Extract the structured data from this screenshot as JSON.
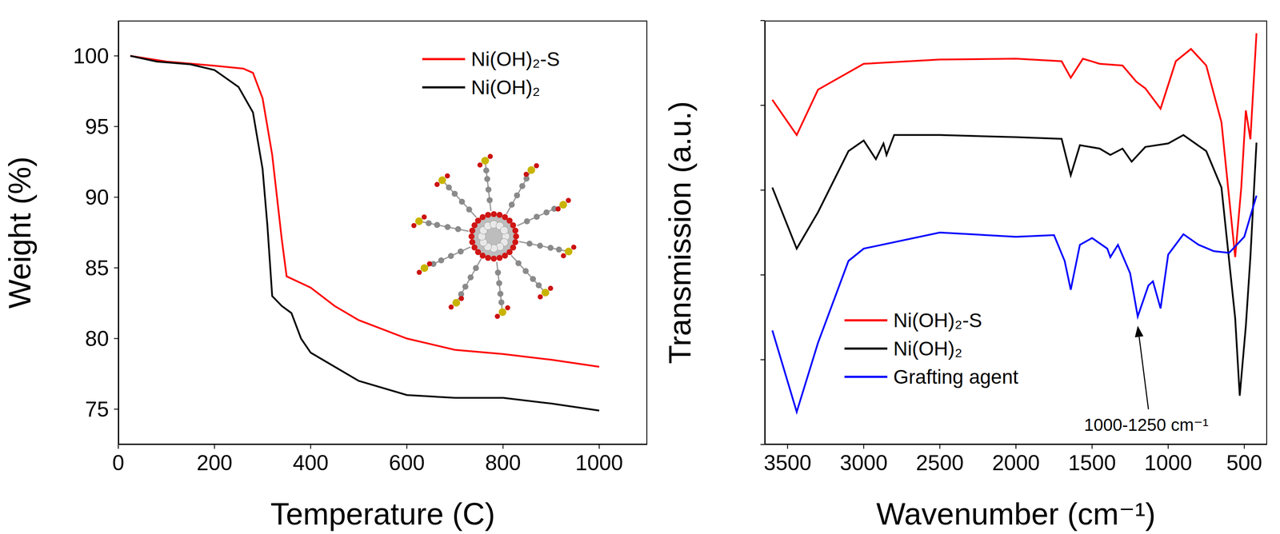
{
  "chart_data": [
    {
      "type": "line",
      "x_label": "Temperature (C)",
      "y_label": "Weight (%)",
      "xlim": [
        0,
        1100
      ],
      "xticks": [
        0,
        200,
        400,
        600,
        800,
        1000
      ],
      "ylim": [
        72.5,
        102.5
      ],
      "yticks": [
        75,
        80,
        85,
        90,
        95,
        100
      ],
      "legend": "upper right",
      "series": [
        {
          "name": "Ni(OH)₂-S",
          "color": "#ff0000",
          "x": [
            25,
            100,
            200,
            260,
            280,
            300,
            320,
            340,
            350,
            400,
            450,
            500,
            600,
            700,
            800,
            900,
            1000
          ],
          "values": [
            100,
            99.6,
            99.3,
            99.1,
            98.8,
            97,
            93,
            87,
            84.4,
            83.6,
            82.3,
            81.3,
            80,
            79.2,
            78.9,
            78.5,
            78
          ]
        },
        {
          "name": "Ni(OH)₂",
          "color": "#000000",
          "x": [
            25,
            80,
            150,
            200,
            250,
            280,
            300,
            310,
            320,
            340,
            360,
            380,
            400,
            450,
            500,
            600,
            700,
            800,
            900,
            1000
          ],
          "values": [
            100,
            99.6,
            99.4,
            99,
            97.8,
            96,
            92,
            88,
            83,
            82.3,
            81.8,
            80,
            79,
            78,
            77,
            76,
            75.8,
            75.8,
            75.4,
            74.9
          ]
        }
      ]
    },
    {
      "type": "line",
      "x_label": "Wavenumber (cm⁻¹)",
      "y_label": "Transmission (a.u.)",
      "xlim": [
        3650,
        350
      ],
      "xticks": [
        3500,
        3000,
        2500,
        2000,
        1500,
        1000,
        500
      ],
      "ylim": [
        0,
        100
      ],
      "yticks": [
        0,
        20,
        40,
        60,
        80,
        100
      ],
      "tick_labels": "x",
      "legend": "lower left",
      "annotations": [
        {
          "text": "1000-1250 cm⁻¹",
          "x": 1200,
          "y": 28
        }
      ],
      "series": [
        {
          "name": "Ni(OH)₂-S",
          "color": "#ff0000",
          "x": [
            3600,
            3440,
            3300,
            3000,
            2500,
            2000,
            1700,
            1640,
            1560,
            1450,
            1300,
            1210,
            1150,
            1050,
            950,
            850,
            750,
            650,
            560,
            520,
            490,
            460,
            420
          ],
          "values": [
            81.3,
            73,
            83.7,
            89.8,
            90.8,
            91,
            90.4,
            86.5,
            91,
            89.8,
            89.4,
            85.6,
            84,
            79.2,
            90.4,
            93.3,
            89.4,
            76,
            44.2,
            60.6,
            78.8,
            72,
            97
          ]
        },
        {
          "name": "Ni(OH)₂",
          "color": "#000000",
          "x": [
            3600,
            3440,
            3300,
            3100,
            3000,
            2920,
            2870,
            2850,
            2800,
            2500,
            2000,
            1700,
            1640,
            1580,
            1450,
            1380,
            1300,
            1240,
            1150,
            1000,
            900,
            750,
            650,
            560,
            530,
            490,
            460,
            420
          ],
          "values": [
            60.6,
            46.2,
            54.8,
            69.2,
            71.7,
            67.3,
            71,
            68.3,
            73,
            73,
            72.5,
            72.1,
            63.5,
            70.6,
            69.8,
            68.3,
            69.8,
            66.7,
            70.2,
            71,
            73,
            69.2,
            60.6,
            29.8,
            11.5,
            27.9,
            44.2,
            71.2
          ]
        },
        {
          "name": "Grafting agent",
          "color": "#0000ff",
          "x": [
            3600,
            3440,
            3300,
            3100,
            3000,
            2500,
            2000,
            1750,
            1680,
            1640,
            1580,
            1500,
            1400,
            1380,
            1330,
            1250,
            1200,
            1130,
            1100,
            1050,
            1000,
            900,
            800,
            700,
            600,
            500,
            420
          ],
          "values": [
            26.9,
            7.7,
            24,
            43.3,
            46.2,
            50,
            49,
            49.4,
            43.3,
            36.5,
            47.1,
            48.7,
            46.2,
            44.2,
            47.1,
            40.4,
            30.2,
            37.5,
            38.5,
            32.1,
            44.8,
            49.6,
            47.1,
            45.6,
            45.2,
            49,
            58.7
          ]
        }
      ]
    }
  ]
}
